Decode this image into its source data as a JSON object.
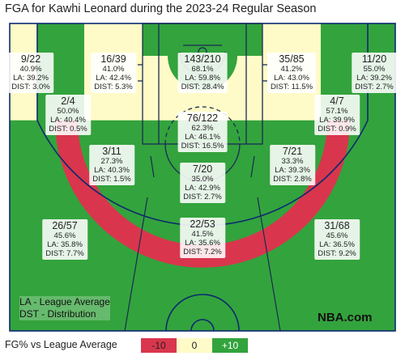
{
  "title": "FGA for Kawhi Leonard during the 2023-24 Regular Season",
  "colors": {
    "below": "#d9364d",
    "neutral": "#fffbc8",
    "above": "#33a33d",
    "court_lines": "#0b2a6e",
    "paint_lines": "#1a2a55"
  },
  "chart_data": {
    "type": "shot_chart",
    "title": "FGA for Kawhi Leonard during the 2023-24 Regular Season",
    "zones": [
      {
        "id": "left-corner-3",
        "fgm_fga": "9/22",
        "fg_pct": "40.9%",
        "la": "LA: 39.2%",
        "dist": "DIST: 3.0%",
        "diff_vs_la": 1.7,
        "rating": "neutral"
      },
      {
        "id": "left-baseline-mid",
        "fgm_fga": "2/4",
        "fg_pct": "50.0%",
        "la": "LA: 40.4%",
        "dist": "DIST: 0.5%",
        "diff_vs_la": 9.6,
        "rating": "above"
      },
      {
        "id": "left-short-mid",
        "fgm_fga": "16/39",
        "fg_pct": "41.0%",
        "la": "LA: 42.4%",
        "dist": "DIST: 5.3%",
        "diff_vs_la": -1.4,
        "rating": "neutral"
      },
      {
        "id": "restricted-area",
        "fgm_fga": "143/210",
        "fg_pct": "68.1%",
        "la": "LA: 59.8%",
        "dist": "DIST: 28.4%",
        "diff_vs_la": 8.3,
        "rating": "above"
      },
      {
        "id": "right-short-mid",
        "fgm_fga": "35/85",
        "fg_pct": "41.2%",
        "la": "LA: 43.0%",
        "dist": "DIST: 11.5%",
        "diff_vs_la": -1.8,
        "rating": "neutral"
      },
      {
        "id": "right-corner-3",
        "fgm_fga": "11/20",
        "fg_pct": "55.0%",
        "la": "LA: 39.2%",
        "dist": "DIST: 2.7%",
        "diff_vs_la": 15.8,
        "rating": "above"
      },
      {
        "id": "right-baseline-mid",
        "fgm_fga": "4/7",
        "fg_pct": "57.1%",
        "la": "LA: 39.9%",
        "dist": "DIST: 0.9%",
        "diff_vs_la": 17.2,
        "rating": "above"
      },
      {
        "id": "paint-non-ra",
        "fgm_fga": "76/122",
        "fg_pct": "62.3%",
        "la": "LA: 46.1%",
        "dist": "DIST: 16.5%",
        "diff_vs_la": 16.2,
        "rating": "above"
      },
      {
        "id": "left-wing-mid",
        "fgm_fga": "3/11",
        "fg_pct": "27.3%",
        "la": "LA: 40.3%",
        "dist": "DIST: 1.5%",
        "diff_vs_la": -13.0,
        "rating": "below"
      },
      {
        "id": "right-wing-mid",
        "fgm_fga": "7/21",
        "fg_pct": "33.3%",
        "la": "LA: 39.3%",
        "dist": "DIST: 2.8%",
        "diff_vs_la": -6.0,
        "rating": "below"
      },
      {
        "id": "top-key-mid",
        "fgm_fga": "7/20",
        "fg_pct": "35.0%",
        "la": "LA: 42.9%",
        "dist": "DIST: 2.7%",
        "diff_vs_la": -7.9,
        "rating": "below"
      },
      {
        "id": "left-wing-3",
        "fgm_fga": "26/57",
        "fg_pct": "45.6%",
        "la": "LA: 35.8%",
        "dist": "DIST: 7.7%",
        "diff_vs_la": 9.8,
        "rating": "above"
      },
      {
        "id": "top-key-3",
        "fgm_fga": "22/53",
        "fg_pct": "41.5%",
        "la": "LA: 35.6%",
        "dist": "DIST: 7.2%",
        "diff_vs_la": 5.9,
        "rating": "above"
      },
      {
        "id": "right-wing-3",
        "fgm_fga": "31/68",
        "fg_pct": "45.6%",
        "la": "LA: 36.5%",
        "dist": "DIST: 9.2%",
        "diff_vs_la": 9.1,
        "rating": "above"
      }
    ],
    "notes": [
      "LA - League Average",
      "DST - Distribution"
    ],
    "legend": {
      "title": "FG% vs League Average",
      "items": [
        {
          "label": "-10",
          "color": "#d9364d"
        },
        {
          "label": "0",
          "color": "#fffbc8"
        },
        {
          "label": "+10",
          "color": "#33a33d"
        }
      ]
    }
  },
  "brand": "NBA.com"
}
